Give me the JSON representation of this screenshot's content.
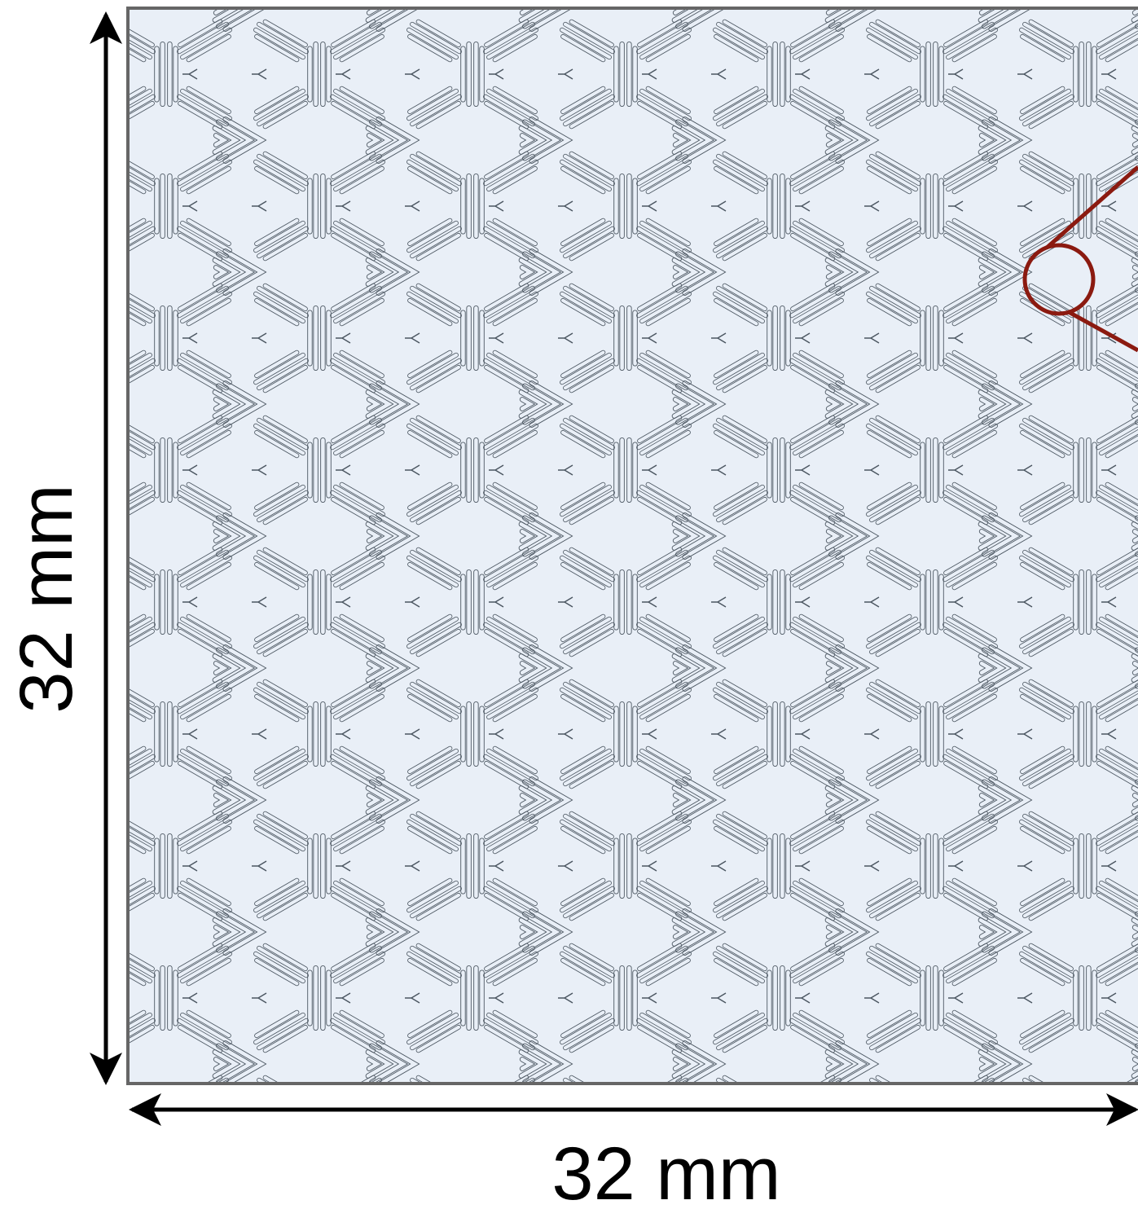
{
  "dimensions": {
    "height_label": "32 mm",
    "width_label": "32 mm"
  }
}
